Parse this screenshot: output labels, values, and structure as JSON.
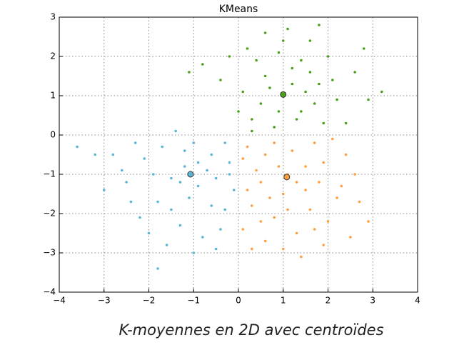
{
  "chart_data": {
    "type": "scatter",
    "title": "KMeans",
    "caption": "K-moyennes en 2D avec centroïdes",
    "xlim": [
      -4,
      4
    ],
    "ylim": [
      -4,
      3
    ],
    "xticks": [
      {
        "value": -4,
        "label": "−4"
      },
      {
        "value": -3,
        "label": "−3"
      },
      {
        "value": -2,
        "label": "−2"
      },
      {
        "value": -1,
        "label": "−1"
      },
      0,
      1,
      2,
      3,
      4
    ],
    "yticks": [
      {
        "value": -4,
        "label": "−4"
      },
      {
        "value": -3,
        "label": "−3"
      },
      {
        "value": -2,
        "label": "−2"
      },
      {
        "value": -1,
        "label": "−1"
      },
      0,
      1,
      2,
      3
    ],
    "grid": true,
    "series": [
      {
        "color": "#5ab4d6",
        "centroid": {
          "x": -1.07,
          "y": -1.0
        },
        "x": [
          -1.2,
          -0.9,
          -1.5,
          -0.6,
          -2.1,
          -1.8,
          -0.3,
          -1.0,
          -2.5,
          -1.3,
          -0.5,
          -1.7,
          -0.8,
          -2.2,
          -0.2,
          -3.0,
          -1.1,
          -0.7,
          -1.9,
          -1.4,
          -0.4,
          -2.8,
          -1.6,
          -0.1,
          -2.4,
          -1.0,
          -3.6,
          -0.6,
          -1.2,
          -2.0,
          -0.3,
          -1.5,
          -0.9,
          -2.6,
          -1.8,
          -0.5,
          -3.2,
          -1.3,
          -0.2,
          -2.3
        ],
        "y": [
          -0.8,
          -1.3,
          -1.1,
          -0.5,
          -0.6,
          -1.7,
          -1.9,
          -0.2,
          -1.2,
          -2.3,
          -1.1,
          -0.3,
          -2.6,
          -2.1,
          -0.7,
          -1.4,
          -1.6,
          -0.9,
          -1.0,
          0.1,
          -2.4,
          -0.5,
          -2.8,
          -1.4,
          -1.7,
          -3.0,
          -0.3,
          -1.8,
          -0.4,
          -2.5,
          -0.2,
          -1.9,
          -0.7,
          -0.9,
          -3.4,
          -2.9,
          -0.5,
          -1.2,
          -1.0,
          -0.2
        ]
      },
      {
        "color": "#4aa01c",
        "centroid": {
          "x": 1.0,
          "y": 1.03
        },
        "x": [
          1.0,
          0.6,
          1.4,
          0.3,
          1.8,
          0.9,
          1.6,
          0.1,
          2.2,
          1.2,
          0.5,
          1.9,
          -0.4,
          0.8,
          1.5,
          2.6,
          0.2,
          1.1,
          -0.8,
          2.0,
          0.7,
          1.3,
          2.9,
          0.4,
          1.7,
          -1.1,
          0.9,
          2.4,
          1.0,
          3.2,
          0.0,
          1.6,
          2.8,
          0.6,
          1.2,
          -0.2,
          2.1,
          0.3,
          1.8,
          1.4
        ],
        "y": [
          1.0,
          1.5,
          0.6,
          0.4,
          1.3,
          2.1,
          2.4,
          1.1,
          0.9,
          1.7,
          0.8,
          0.3,
          1.4,
          0.2,
          1.1,
          1.6,
          2.2,
          2.7,
          1.8,
          2.0,
          1.2,
          0.4,
          0.9,
          1.9,
          0.8,
          1.6,
          0.6,
          0.3,
          2.4,
          1.1,
          0.6,
          1.6,
          2.2,
          2.6,
          1.3,
          2.0,
          1.4,
          0.1,
          2.8,
          1.9
        ]
      },
      {
        "color": "#ff9e3d",
        "centroid": {
          "x": 1.08,
          "y": -1.07
        },
        "x": [
          1.1,
          0.6,
          1.5,
          0.3,
          1.9,
          0.8,
          2.2,
          0.2,
          1.3,
          1.7,
          0.5,
          2.6,
          1.0,
          0.1,
          2.0,
          0.9,
          1.6,
          2.9,
          0.4,
          1.2,
          2.4,
          0.7,
          1.4,
          0.2,
          1.8,
          2.7,
          1.0,
          0.6,
          2.1,
          1.5,
          0.3,
          2.5,
          1.1,
          0.8,
          1.9,
          1.3,
          0.5,
          2.3,
          1.7,
          0.1
        ],
        "y": [
          -1.0,
          -0.5,
          -1.4,
          -1.8,
          -0.7,
          -2.1,
          -1.6,
          -0.3,
          -2.5,
          -0.2,
          -1.2,
          -1.0,
          -2.9,
          -2.4,
          -2.2,
          -0.8,
          -1.9,
          -2.2,
          -0.9,
          -0.4,
          -0.5,
          -1.6,
          -3.1,
          -1.4,
          -1.2,
          -1.7,
          -1.5,
          -2.7,
          -0.1,
          -0.8,
          -2.9,
          -2.6,
          -1.9,
          -0.2,
          -2.8,
          -1.2,
          -2.2,
          -1.3,
          -2.4,
          -0.6
        ]
      }
    ]
  }
}
